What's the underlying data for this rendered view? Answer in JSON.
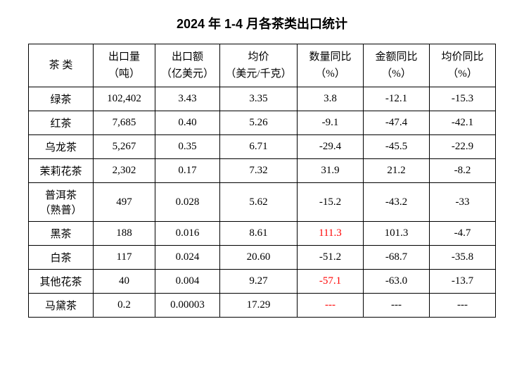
{
  "title": "2024 年 1-4 月各茶类出口统计",
  "table": {
    "columns": [
      {
        "label": "茶  类",
        "width": 92
      },
      {
        "label": "出口量\n（吨）",
        "width": 88
      },
      {
        "label": "出口额\n（亿美元）",
        "width": 92
      },
      {
        "label": "均价\n（美元/千克）",
        "width": 110
      },
      {
        "label": "数量同比\n（%）",
        "width": 94
      },
      {
        "label": "金额同比\n（%）",
        "width": 94
      },
      {
        "label": "均价同比\n（%）",
        "width": 94
      }
    ],
    "rows": [
      {
        "cells": [
          "绿茶",
          "102,402",
          "3.43",
          "3.35",
          "3.8",
          "-12.1",
          "-15.3"
        ],
        "red": []
      },
      {
        "cells": [
          "红茶",
          "7,685",
          "0.40",
          "5.26",
          "-9.1",
          "-47.4",
          "-42.1"
        ],
        "red": []
      },
      {
        "cells": [
          "乌龙茶",
          "5,267",
          "0.35",
          "6.71",
          "-29.4",
          "-45.5",
          "-22.9"
        ],
        "red": []
      },
      {
        "cells": [
          "茉莉花茶",
          "2,302",
          "0.17",
          "7.32",
          "31.9",
          "21.2",
          "-8.2"
        ],
        "red": []
      },
      {
        "cells": [
          "普洱茶\n（熟普）",
          "497",
          "0.028",
          "5.62",
          "-15.2",
          "-43.2",
          "-33"
        ],
        "red": []
      },
      {
        "cells": [
          "黑茶",
          "188",
          "0.016",
          "8.61",
          "111.3",
          "101.3",
          "-4.7"
        ],
        "red": [
          4
        ]
      },
      {
        "cells": [
          "白茶",
          "117",
          "0.024",
          "20.60",
          "-51.2",
          "-68.7",
          "-35.8"
        ],
        "red": []
      },
      {
        "cells": [
          "其他花茶",
          "40",
          "0.004",
          "9.27",
          "-57.1",
          "-63.0",
          "-13.7"
        ],
        "red": [
          4
        ]
      },
      {
        "cells": [
          "马黛茶",
          "0.2",
          "0.00003",
          "17.29",
          "---",
          "---",
          "---"
        ],
        "red": [
          4
        ]
      }
    ],
    "border_color": "#000000",
    "background_color": "#ffffff",
    "font_size": 15,
    "title_fontsize": 18,
    "red_color": "#ff0000"
  }
}
